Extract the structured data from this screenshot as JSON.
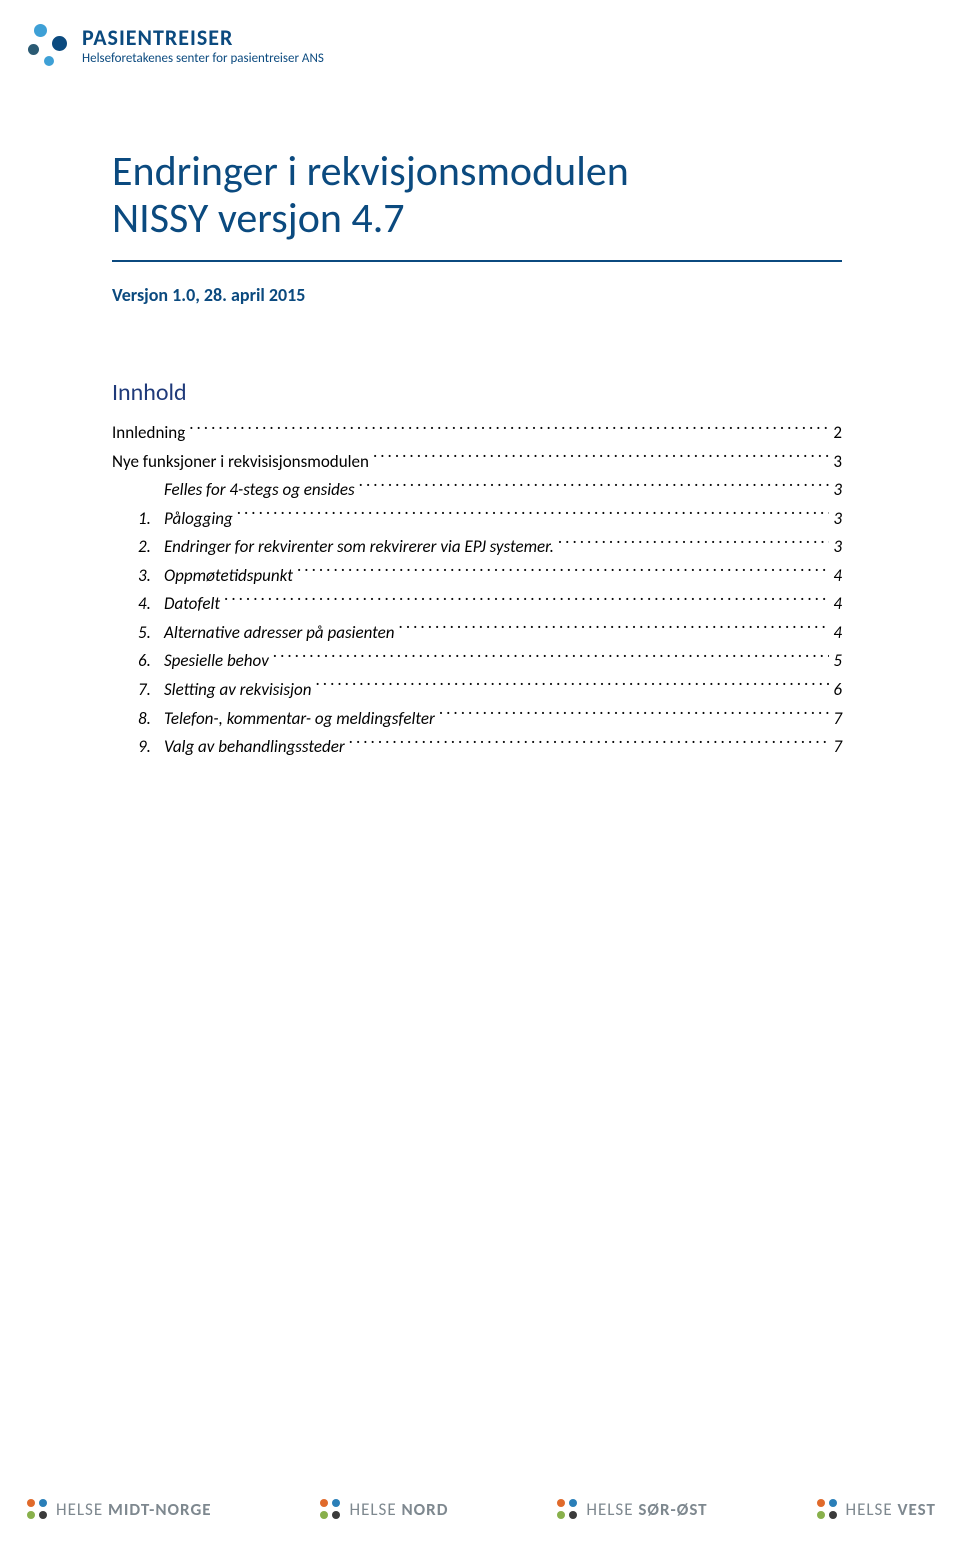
{
  "colors": {
    "brand_blue": "#0b4a7f",
    "logo_blue_light": "#3ea0d6",
    "logo_teal": "#2a5a73",
    "text_black": "#000000",
    "hr_color": "#0b4a7f",
    "toc_title_color": "#1f3a7a",
    "footer_gray": "#7e888f"
  },
  "header": {
    "brand_name": "PASIENTREISER",
    "brand_sub": "Helseforetakenes senter for pasientreiser ANS"
  },
  "document": {
    "title_line1": "Endringer i rekvisjonsmodulen",
    "title_line2": "NISSY versjon 4.7",
    "version_line": "Versjon 1.0, 28. april 2015",
    "toc_title": "Innhold"
  },
  "toc": [
    {
      "label": "Innledning",
      "page": "2",
      "level": 0,
      "italic": false
    },
    {
      "label": "Nye funksjoner i rekvisisjonsmodulen",
      "page": "3",
      "level": 0,
      "italic": false
    },
    {
      "label": "Felles for 4-stegs og ensides",
      "page": "3",
      "level": 1,
      "italic": true,
      "num": ""
    },
    {
      "label": "Pålogging",
      "page": "3",
      "level": 1,
      "italic": true,
      "num": "1."
    },
    {
      "label": "Endringer for rekvirenter som rekvirerer via  EPJ systemer.",
      "page": "3",
      "level": 1,
      "italic": true,
      "num": "2."
    },
    {
      "label": "Oppmøtetidspunkt",
      "page": "4",
      "level": 1,
      "italic": true,
      "num": "3."
    },
    {
      "label": "Datofelt",
      "page": "4",
      "level": 1,
      "italic": true,
      "num": "4."
    },
    {
      "label": "Alternative adresser på pasienten",
      "page": "4",
      "level": 1,
      "italic": true,
      "num": "5."
    },
    {
      "label": "Spesielle behov",
      "page": "5",
      "level": 1,
      "italic": true,
      "num": "6."
    },
    {
      "label": "Sletting av rekvisisjon",
      "page": "6",
      "level": 1,
      "italic": true,
      "num": "7."
    },
    {
      "label": "Telefon-, kommentar- og meldingsfelter",
      "page": "7",
      "level": 1,
      "italic": true,
      "num": "8."
    },
    {
      "label": "Valg av behandlingssteder",
      "page": "7",
      "level": 1,
      "italic": true,
      "num": "9."
    }
  ],
  "footer": {
    "word": "HELSE",
    "regions": [
      "MIDT-NORGE",
      "NORD",
      "SØR-ØST",
      "VEST"
    ],
    "logo_colors": [
      [
        "#e06a2b",
        "#2a7fb8",
        "#88b04b",
        "#3b3b3b"
      ],
      [
        "#e06a2b",
        "#2a7fb8",
        "#88b04b",
        "#3b3b3b"
      ],
      [
        "#e06a2b",
        "#2a7fb8",
        "#88b04b",
        "#3b3b3b"
      ],
      [
        "#e06a2b",
        "#2a7fb8",
        "#88b04b",
        "#3b3b3b"
      ]
    ]
  }
}
